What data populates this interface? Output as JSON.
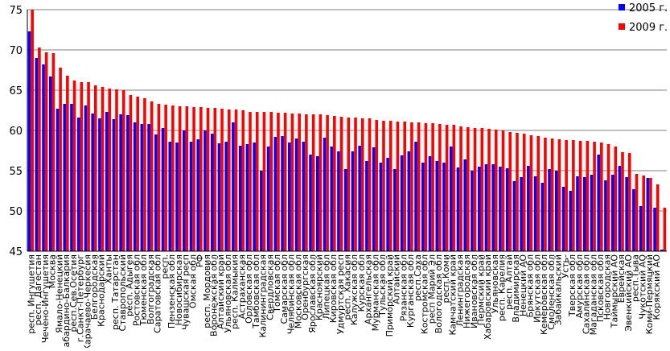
{
  "chart_data": {
    "type": "bar",
    "ylim": [
      45,
      75
    ],
    "yticks": [
      45,
      50,
      55,
      60,
      65,
      70,
      75
    ],
    "grid": true,
    "legend_position": "top-right",
    "series": [
      {
        "name": "2005 г.",
        "color": "#0000ff",
        "values": [
          72.3,
          69.0,
          68.2,
          66.7,
          62.7,
          63.3,
          63.3,
          61.6,
          63.1,
          62.1,
          61.5,
          62.3,
          61.4,
          62.0,
          61.9,
          61.0,
          60.8,
          60.8,
          59.5,
          60.3,
          58.6,
          58.5,
          60.0,
          58.6,
          58.9,
          60.0,
          59.6,
          58.4,
          58.6,
          61.0,
          58.1,
          58.3,
          58.5,
          55.0,
          58.0,
          59.2,
          59.3,
          58.5,
          59.0,
          58.6,
          57.0,
          56.8,
          59.1,
          58.0,
          57.4,
          55.2,
          57.4,
          58.1,
          56.2,
          57.9,
          56.0,
          56.6,
          55.2,
          56.9,
          57.4,
          58.6,
          56.0,
          56.8,
          56.2,
          56.0,
          58.0,
          55.4,
          56.4,
          55.0,
          55.5,
          55.8,
          55.8,
          55.5,
          55.3,
          53.7,
          54.2,
          55.6,
          54.3,
          53.5,
          55.2,
          55.0,
          53.0,
          52.5,
          54.3,
          54.2,
          54.5,
          57.0,
          53.8,
          54.5,
          55.6,
          54.2,
          52.7,
          50.6,
          54.1,
          50.4,
          45.2
        ]
      },
      {
        "name": "2009 г.",
        "color": "#ff0000",
        "values": [
          75.0,
          70.3,
          69.7,
          69.6,
          67.8,
          66.8,
          66.2,
          66.0,
          66.0,
          65.6,
          65.4,
          65.2,
          65.1,
          65.0,
          64.4,
          64.2,
          64.0,
          63.6,
          63.3,
          63.2,
          63.1,
          63.0,
          63.0,
          62.9,
          62.9,
          62.8,
          62.8,
          62.7,
          62.6,
          62.6,
          62.5,
          62.3,
          62.3,
          62.3,
          62.3,
          62.2,
          62.2,
          62.1,
          62.1,
          62.0,
          62.0,
          62.0,
          61.9,
          61.8,
          61.7,
          61.6,
          61.6,
          61.5,
          61.5,
          61.3,
          61.2,
          61.2,
          61.1,
          61.1,
          61.0,
          61.0,
          60.9,
          60.9,
          60.8,
          60.7,
          60.7,
          60.5,
          60.4,
          60.3,
          60.3,
          60.2,
          60.1,
          60.0,
          59.8,
          59.7,
          59.6,
          59.4,
          59.3,
          59.1,
          59.0,
          58.9,
          58.8,
          58.8,
          58.7,
          58.7,
          58.6,
          58.5,
          58.3,
          58.0,
          57.3,
          57.2,
          54.6,
          54.4,
          54.1,
          53.3,
          50.4
        ]
      }
    ],
    "categories": [
      "респ. Ингушетия",
      "респ. Дагестан",
      "Чечено-Ингушетия",
      "Москва",
      "Ямало-Ненецкий",
      "Кабардино-Балкария",
      "респ.Сев.Осетия",
      "г.Санкт-Петербург",
      "Карачаево-Черкесия",
      "Белгородская",
      "Краснодарский",
      "Ханты",
      "респ. Татарстан",
      "Ставропольский",
      "респ. Адыгея",
      "Ростовская обл",
      "Тюменская обл",
      "Волгоградская",
      "Саратовская обл",
      "респ.",
      "Пензенская обл",
      "Новосибирская",
      "Чувашская респ",
      "Омская обл",
      "РФ",
      "респ. Мордовия",
      "Воронежская обл",
      "Алтайский край",
      "Ульяновская обл",
      "респ. Калмыкия",
      "Астраханская",
      "Орловская обл",
      "Тамбовская обл",
      "Калининградская",
      "Свердловская",
      "Томская обл",
      "Самарская обл",
      "Челябинская обл",
      "Московская обл",
      "Оренбургская",
      "Ярославская обл",
      "Красноярский",
      "Липецкая обл",
      "Кировская обл",
      "Удмуртская респ",
      "респ. Хакасия",
      "Калужская обл",
      "Курская обл",
      "Архангельская",
      "Мурманская обл",
      "Тульская обл",
      "Приморский край",
      "Алтайский",
      "Рязанская обл",
      "Курганская обл",
      "респ.Саха",
      "Костромская обл",
      "респ Марий Эл",
      "Вологодская обл",
      "респ.Коми",
      "Камчатский край",
      "Ленинградская",
      "Нижегородская",
      "Ивановская обл",
      "Пермский край",
      "Хабаровский край",
      "Ульяновская",
      "респ. Карелия",
      "респ. Алтай",
      "Владимирская",
      "Ненецкий АО",
      "Брянская обл",
      "Иркутская обл",
      "Кемеровская обл",
      "Смоленская обл",
      "Забайкальский",
      "Усть-",
      "Тверская обл",
      "Амурская обл",
      "Сахалинская обл",
      "Магаданская обл",
      "Псковская обл",
      "Новгородская",
      "Таймырский АО",
      "Еврейская",
      "Эвенкийский АО",
      "респ.Тыва",
      "Чукотский АО",
      "Коми-Пермяцкий",
      "Корякский АО",
      ""
    ]
  }
}
